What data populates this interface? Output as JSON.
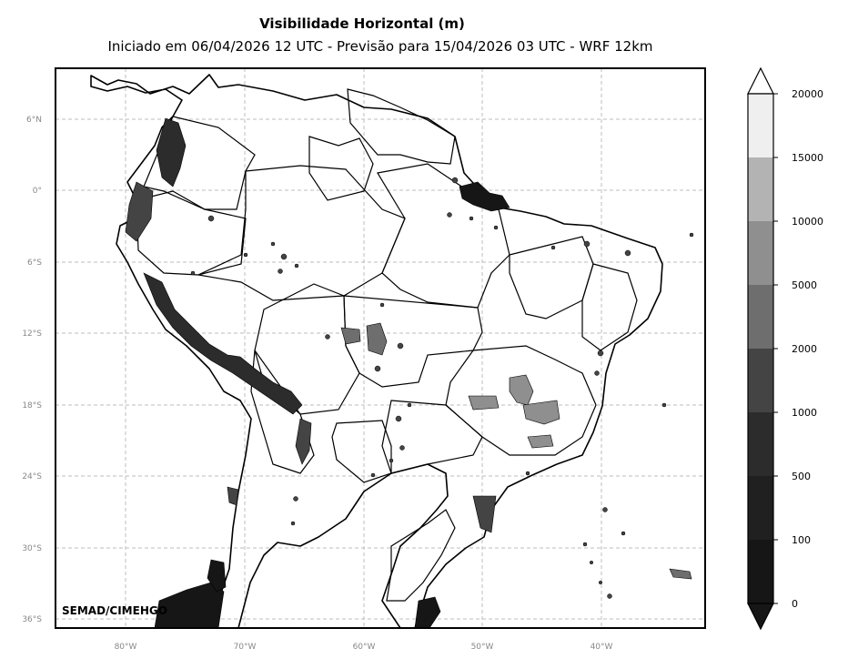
{
  "map": {
    "title": "Visibilidade Horizontal (m)",
    "subtitle": "Iniciado em 06/04/2026 12 UTC - Previsão para 15/04/2026 03 UTC - WRF 12km",
    "credit": "SEMAD/CIMEHGO",
    "lat_ticks": [
      "6°N",
      "0°",
      "6°S",
      "12°S",
      "18°S",
      "24°S",
      "30°S",
      "36°S"
    ],
    "lon_ticks": [
      "80°W",
      "70°W",
      "60°W",
      "50°W",
      "40°W"
    ],
    "extent": {
      "lon_min": -86,
      "lon_max": -31.5,
      "lat_min": -36.8,
      "lat_max": 10.2
    },
    "colorbar": {
      "labels": [
        "0",
        "100",
        "500",
        "1000",
        "2000",
        "5000",
        "10000",
        "15000",
        "20000"
      ],
      "colors": [
        "#161616",
        "#202020",
        "#2c2c2c",
        "#444444",
        "#6e6e6e",
        "#8f8f8f",
        "#b3b3b3",
        "#efefef"
      ]
    }
  }
}
